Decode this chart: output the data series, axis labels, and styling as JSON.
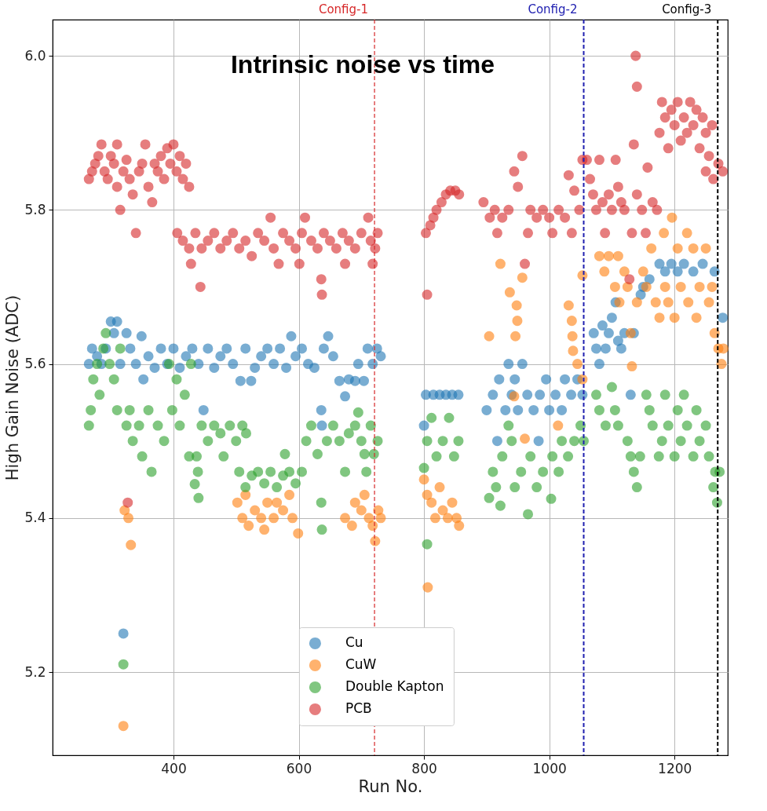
{
  "chart_data": {
    "type": "scatter",
    "title": "Intrinsic noise vs time",
    "xlabel": "Run No.",
    "ylabel": "High Gain Noise (ADC)",
    "xlim": [
      207,
      1285
    ],
    "xticks": [
      400,
      600,
      800,
      1000,
      1200
    ],
    "ylim": [
      5.092,
      6.047
    ],
    "yticks": [
      5.2,
      5.4,
      5.6,
      5.8,
      {
        "value": 6.0,
        "label": "6.0"
      }
    ],
    "grid": true,
    "legend": "bottom",
    "marker": "circle",
    "ref_lines": [
      {
        "axis": "x",
        "value": 721,
        "label": "Config-1",
        "color": "#d62728",
        "line_style": "dashed"
      },
      {
        "axis": "x",
        "value": 1055,
        "label": "Config-2",
        "color": "#2020b0",
        "line_style": "dashed"
      },
      {
        "axis": "x",
        "value": 1269,
        "label": "Config-3",
        "color": "#000000",
        "line_style": "dashed"
      }
    ],
    "series": [
      {
        "name": "Cu",
        "color": "#1f77b4",
        "x": [
          265,
          270,
          278,
          285,
          292,
          300,
          305,
          310,
          315,
          320,
          325,
          331,
          340,
          349,
          352,
          360,
          370,
          380,
          390,
          400,
          410,
          420,
          430,
          440,
          448,
          455,
          465,
          475,
          485,
          495,
          507,
          515,
          524,
          530,
          540,
          550,
          560,
          570,
          580,
          588,
          595,
          605,
          615,
          625,
          636,
          637,
          640,
          647,
          655,
          665,
          674,
          680,
          690,
          695,
          704,
          710,
          718,
          725,
          731,
          800,
          803,
          815,
          825,
          835,
          845,
          855,
          900,
          910,
          917,
          920,
          930,
          935,
          940,
          945,
          950,
          957,
          965,
          975,
          983,
          985,
          995,
          1000,
          1010,
          1020,
          1025,
          1035,
          1045,
          1053,
          1071,
          1075,
          1080,
          1085,
          1090,
          1095,
          1100,
          1106,
          1110,
          1115,
          1120,
          1130,
          1135,
          1146,
          1150,
          1160,
          1176,
          1185,
          1195,
          1205,
          1215,
          1230,
          1245,
          1264,
          1277
        ],
        "values": [
          5.6,
          5.62,
          5.61,
          5.6,
          5.62,
          5.655,
          5.64,
          5.655,
          5.6,
          5.25,
          5.64,
          5.62,
          5.6,
          5.636,
          5.58,
          5.61,
          5.595,
          5.62,
          5.6,
          5.62,
          5.595,
          5.61,
          5.62,
          5.6,
          5.54,
          5.62,
          5.595,
          5.61,
          5.62,
          5.6,
          5.578,
          5.62,
          5.578,
          5.595,
          5.61,
          5.62,
          5.6,
          5.62,
          5.595,
          5.636,
          5.61,
          5.62,
          5.6,
          5.595,
          5.54,
          5.52,
          5.62,
          5.636,
          5.61,
          5.578,
          5.558,
          5.58,
          5.578,
          5.6,
          5.578,
          5.62,
          5.6,
          5.62,
          5.61,
          5.52,
          5.56,
          5.56,
          5.56,
          5.56,
          5.56,
          5.56,
          5.54,
          5.56,
          5.5,
          5.58,
          5.54,
          5.6,
          5.56,
          5.58,
          5.54,
          5.6,
          5.56,
          5.54,
          5.5,
          5.56,
          5.58,
          5.54,
          5.56,
          5.54,
          5.58,
          5.56,
          5.58,
          5.56,
          5.64,
          5.62,
          5.6,
          5.65,
          5.62,
          5.64,
          5.66,
          5.68,
          5.63,
          5.62,
          5.64,
          5.56,
          5.64,
          5.69,
          5.7,
          5.71,
          5.73,
          5.72,
          5.73,
          5.72,
          5.73,
          5.72,
          5.73,
          5.72,
          5.66
        ]
      },
      {
        "name": "CuW",
        "color": "#ff7f0e",
        "x": [
          320,
          322,
          328,
          332,
          502,
          510,
          515,
          520,
          530,
          540,
          545,
          550,
          560,
          565,
          575,
          585,
          590,
          599,
          674,
          685,
          690,
          700,
          705,
          712,
          718,
          722,
          727,
          731,
          806,
          800,
          805,
          812,
          818,
          825,
          830,
          838,
          845,
          852,
          856,
          904,
          922,
          937,
          944,
          946,
          948,
          949,
          957,
          961,
          1014,
          1031,
          1036,
          1037,
          1038,
          1045,
          1053,
          1053,
          1080,
          1088,
          1095,
          1105,
          1110,
          1112,
          1120,
          1125,
          1130,
          1132,
          1140,
          1150,
          1155,
          1163,
          1170,
          1176,
          1183,
          1185,
          1190,
          1196,
          1200,
          1205,
          1210,
          1220,
          1222,
          1230,
          1235,
          1240,
          1250,
          1255,
          1260,
          1264,
          1270,
          1275,
          1278
        ],
        "values": [
          5.13,
          5.41,
          5.4,
          5.365,
          5.42,
          5.4,
          5.43,
          5.39,
          5.41,
          5.4,
          5.385,
          5.42,
          5.4,
          5.42,
          5.41,
          5.43,
          5.4,
          5.38,
          5.4,
          5.39,
          5.42,
          5.41,
          5.43,
          5.4,
          5.39,
          5.37,
          5.41,
          5.4,
          5.31,
          5.45,
          5.43,
          5.42,
          5.4,
          5.44,
          5.41,
          5.4,
          5.42,
          5.4,
          5.39,
          5.636,
          5.73,
          5.693,
          5.558,
          5.636,
          5.676,
          5.656,
          5.712,
          5.503,
          5.52,
          5.676,
          5.656,
          5.636,
          5.617,
          5.6,
          5.58,
          5.715,
          5.74,
          5.72,
          5.74,
          5.7,
          5.74,
          5.68,
          5.72,
          5.7,
          5.64,
          5.597,
          5.68,
          5.72,
          5.7,
          5.75,
          5.68,
          5.66,
          5.77,
          5.7,
          5.68,
          5.79,
          5.66,
          5.75,
          5.7,
          5.77,
          5.68,
          5.75,
          5.66,
          5.7,
          5.75,
          5.68,
          5.7,
          5.64,
          5.62,
          5.6,
          5.62
        ]
      },
      {
        "name": "Double Kapton",
        "color": "#2ca02c",
        "x": [
          265,
          268,
          272,
          278,
          282,
          288,
          292,
          298,
          305,
          310,
          315,
          320,
          325,
          330,
          335,
          345,
          350,
          360,
          365,
          375,
          385,
          393,
          398,
          405,
          410,
          418,
          425,
          428,
          434,
          437,
          439,
          440,
          445,
          455,
          465,
          475,
          480,
          490,
          500,
          510,
          516,
          505,
          515,
          525,
          535,
          545,
          555,
          565,
          575,
          585,
          595,
          605,
          578,
          612,
          620,
          630,
          636,
          637,
          645,
          655,
          665,
          674,
          680,
          690,
          695,
          700,
          708,
          705,
          715,
          720,
          726,
          805,
          800,
          805,
          812,
          820,
          830,
          840,
          848,
          855,
          904,
          910,
          915,
          922,
          925,
          935,
          940,
          945,
          955,
          966,
          970,
          980,
          990,
          1003,
          1005,
          1015,
          1020,
          1030,
          1040,
          1050,
          1055,
          1075,
          1080,
          1090,
          1100,
          1105,
          1110,
          1125,
          1130,
          1135,
          1140,
          1145,
          1155,
          1160,
          1165,
          1175,
          1180,
          1185,
          1190,
          1200,
          1205,
          1210,
          1215,
          1220,
          1230,
          1235,
          1240,
          1250,
          1255,
          1262,
          1265,
          1268,
          1272
        ],
        "values": [
          5.52,
          5.54,
          5.58,
          5.6,
          5.56,
          5.62,
          5.64,
          5.6,
          5.58,
          5.54,
          5.62,
          5.21,
          5.52,
          5.54,
          5.5,
          5.52,
          5.48,
          5.54,
          5.46,
          5.52,
          5.5,
          5.6,
          5.54,
          5.58,
          5.52,
          5.56,
          5.48,
          5.6,
          5.444,
          5.48,
          5.46,
          5.426,
          5.52,
          5.5,
          5.52,
          5.51,
          5.48,
          5.52,
          5.5,
          5.52,
          5.51,
          5.46,
          5.44,
          5.455,
          5.46,
          5.445,
          5.46,
          5.44,
          5.455,
          5.46,
          5.445,
          5.46,
          5.483,
          5.5,
          5.52,
          5.483,
          5.42,
          5.385,
          5.5,
          5.52,
          5.5,
          5.46,
          5.51,
          5.52,
          5.537,
          5.5,
          5.46,
          5.483,
          5.52,
          5.483,
          5.5,
          5.366,
          5.465,
          5.5,
          5.53,
          5.48,
          5.5,
          5.53,
          5.48,
          5.5,
          5.426,
          5.46,
          5.44,
          5.416,
          5.48,
          5.52,
          5.5,
          5.44,
          5.46,
          5.405,
          5.48,
          5.44,
          5.46,
          5.425,
          5.48,
          5.46,
          5.5,
          5.48,
          5.5,
          5.52,
          5.5,
          5.56,
          5.54,
          5.52,
          5.57,
          5.54,
          5.52,
          5.5,
          5.48,
          5.46,
          5.44,
          5.48,
          5.56,
          5.54,
          5.52,
          5.48,
          5.5,
          5.56,
          5.52,
          5.48,
          5.54,
          5.5,
          5.56,
          5.52,
          5.48,
          5.54,
          5.5,
          5.52,
          5.48,
          5.44,
          5.46,
          5.42,
          5.46
        ]
      },
      {
        "name": "PCB",
        "color": "#d62728",
        "x": [
          265,
          270,
          275,
          280,
          285,
          290,
          295,
          300,
          305,
          310,
          310,
          315,
          320,
          325,
          330,
          335,
          340,
          345,
          350,
          355,
          360,
          366,
          370,
          375,
          380,
          385,
          390,
          395,
          400,
          405,
          410,
          415,
          420,
          425,
          327,
          406,
          415,
          425,
          428,
          435,
          443,
          445,
          455,
          465,
          475,
          485,
          495,
          505,
          515,
          525,
          535,
          545,
          555,
          560,
          568,
          575,
          585,
          595,
          601,
          605,
          610,
          620,
          630,
          636,
          637,
          640,
          650,
          660,
          670,
          674,
          680,
          690,
          700,
          711,
          715,
          718,
          722,
          726,
          805,
          803,
          810,
          815,
          820,
          828,
          835,
          842,
          850,
          856,
          895,
          905,
          913,
          917,
          922,
          925,
          935,
          944,
          950,
          957,
          961,
          966,
          970,
          980,
          990,
          1000,
          1005,
          1015,
          1025,
          1031,
          1036,
          1040,
          1048,
          1053,
          1060,
          1065,
          1070,
          1075,
          1080,
          1085,
          1089,
          1095,
          1100,
          1106,
          1110,
          1115,
          1120,
          1128,
          1132,
          1135,
          1138,
          1140,
          1140,
          1148,
          1154,
          1157,
          1165,
          1172,
          1176,
          1180,
          1185,
          1190,
          1195,
          1200,
          1205,
          1210,
          1215,
          1220,
          1225,
          1230,
          1235,
          1240,
          1245,
          1250,
          1255,
          1260,
          1250,
          1262,
          1270,
          1277
        ],
        "values": [
          5.84,
          5.85,
          5.86,
          5.87,
          5.885,
          5.85,
          5.84,
          5.87,
          5.86,
          5.885,
          5.83,
          5.8,
          5.85,
          5.865,
          5.84,
          5.82,
          5.77,
          5.85,
          5.86,
          5.885,
          5.83,
          5.81,
          5.86,
          5.85,
          5.87,
          5.84,
          5.88,
          5.86,
          5.885,
          5.85,
          5.87,
          5.84,
          5.86,
          5.83,
          5.42,
          5.77,
          5.76,
          5.75,
          5.73,
          5.77,
          5.7,
          5.75,
          5.76,
          5.77,
          5.75,
          5.76,
          5.77,
          5.75,
          5.76,
          5.74,
          5.77,
          5.76,
          5.79,
          5.75,
          5.73,
          5.77,
          5.76,
          5.75,
          5.73,
          5.77,
          5.79,
          5.76,
          5.75,
          5.71,
          5.69,
          5.77,
          5.76,
          5.75,
          5.77,
          5.73,
          5.76,
          5.75,
          5.77,
          5.79,
          5.76,
          5.73,
          5.75,
          5.77,
          5.69,
          5.77,
          5.78,
          5.79,
          5.8,
          5.81,
          5.82,
          5.825,
          5.825,
          5.82,
          5.81,
          5.79,
          5.8,
          5.77,
          null,
          5.79,
          5.8,
          5.85,
          5.83,
          5.87,
          5.73,
          5.77,
          5.8,
          5.79,
          5.8,
          5.79,
          5.77,
          5.8,
          5.79,
          5.845,
          5.77,
          5.825,
          5.8,
          5.865,
          5.865,
          5.84,
          5.82,
          5.8,
          5.865,
          5.81,
          5.77,
          5.82,
          5.8,
          5.865,
          5.83,
          5.81,
          5.8,
          5.71,
          5.77,
          5.885,
          6.0,
          5.96,
          5.82,
          5.8,
          5.77,
          5.855,
          5.81,
          5.8,
          5.9,
          5.94,
          5.92,
          5.88,
          5.93,
          5.91,
          5.94,
          5.89,
          5.92,
          5.9,
          5.94,
          5.91,
          5.93,
          5.88,
          5.92,
          5.9,
          5.87,
          5.91,
          5.85,
          5.84,
          5.86,
          5.85
        ]
      }
    ]
  }
}
